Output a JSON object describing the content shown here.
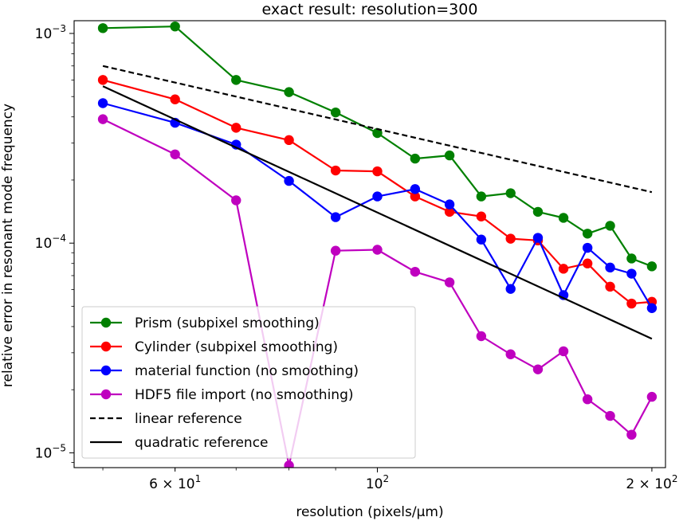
{
  "chart_data": {
    "type": "line",
    "title": "exact result: resolution=300",
    "xlabel": "resolution (pixels/μm)",
    "ylabel": "relative error in resonant mode frequency",
    "xscale": "log",
    "yscale": "log",
    "xlim": [
      46.5,
      207
    ],
    "ylim": [
      8.5e-06,
      0.00115
    ],
    "grid": false,
    "legend_position": "lower-left",
    "x_ticks": [
      {
        "value": 60,
        "base": "6",
        "exp": "1"
      },
      {
        "value": 100,
        "base": "10",
        "exp": "2"
      },
      {
        "value": 200,
        "base": "2",
        "exp": "2"
      }
    ],
    "y_ticks": [
      {
        "value": 0.001,
        "exp": "−3"
      },
      {
        "value": 0.0001,
        "exp": "−4"
      },
      {
        "value": 1e-05,
        "exp": "−5"
      }
    ],
    "tick_base": "10",
    "tick_times": "×",
    "x": [
      50,
      60,
      70,
      80,
      90,
      100,
      110,
      120,
      130,
      140,
      150,
      160,
      170,
      180,
      190,
      200
    ],
    "series": [
      {
        "name": "Prism (subpixel smoothing)",
        "color": "#008000",
        "style": "solid",
        "marker": true,
        "values": [
          0.00106,
          0.00108,
          0.0006,
          0.000525,
          0.00042,
          0.000335,
          0.000253,
          0.000262,
          0.000167,
          0.000173,
          0.000141,
          0.000132,
          0.000111,
          0.000121,
          8.45e-05,
          7.75e-05
        ]
      },
      {
        "name": "Cylinder (subpixel smoothing)",
        "color": "#ff0000",
        "style": "solid",
        "marker": true,
        "values": [
          0.0006,
          0.000485,
          0.000355,
          0.00031,
          0.000222,
          0.00022,
          0.000167,
          0.000141,
          0.000134,
          0.000105,
          0.000103,
          7.55e-05,
          8e-05,
          6.2e-05,
          5.15e-05,
          5.25e-05
        ]
      },
      {
        "name": "material function (no smoothing)",
        "color": "#0000ff",
        "style": "solid",
        "marker": true,
        "values": [
          0.000465,
          0.000375,
          0.000295,
          0.000198,
          0.000133,
          0.000167,
          0.000181,
          0.000153,
          0.000104,
          6.05e-05,
          0.000106,
          5.65e-05,
          9.5e-05,
          7.65e-05,
          7.15e-05,
          4.9e-05
        ]
      },
      {
        "name": "HDF5 file import (no smoothing)",
        "color": "#bf00bf",
        "style": "solid",
        "marker": true,
        "values": [
          0.00039,
          0.000265,
          0.00016,
          8.7e-06,
          9.2e-05,
          9.3e-05,
          7.3e-05,
          6.5e-05,
          3.6e-05,
          2.95e-05,
          2.5e-05,
          3.05e-05,
          1.8e-05,
          1.5e-05,
          1.22e-05,
          1.85e-05
        ]
      },
      {
        "name": "linear reference",
        "color": "#000000",
        "style": "dashed",
        "marker": false,
        "x": [
          50,
          200
        ],
        "values": [
          0.0007,
          0.000175
        ]
      },
      {
        "name": "quadratic reference",
        "color": "#000000",
        "style": "solid",
        "marker": false,
        "x": [
          50,
          200
        ],
        "values": [
          0.00056,
          3.5e-05
        ]
      }
    ]
  }
}
